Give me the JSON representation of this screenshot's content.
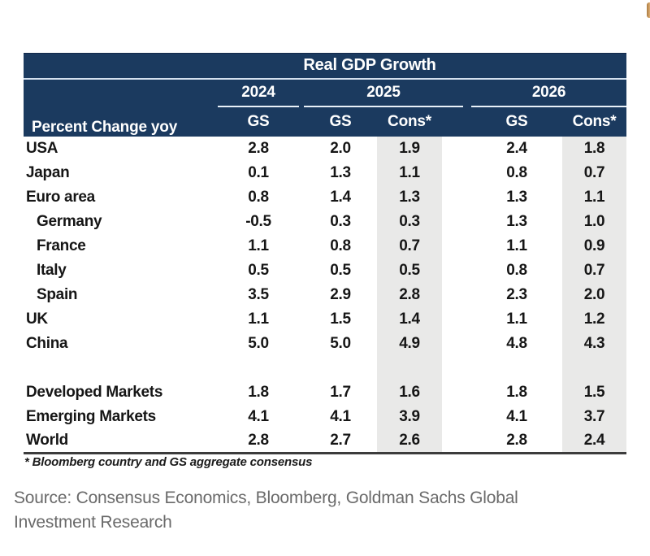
{
  "chart_data": {
    "type": "table",
    "title": "Real GDP Growth",
    "corner_label": "Percent Change yoy",
    "year_groups": [
      {
        "year": "2024",
        "subs": [
          "GS"
        ]
      },
      {
        "year": "2025",
        "subs": [
          "GS",
          "Cons*"
        ]
      },
      {
        "year": "2026",
        "subs": [
          "GS",
          "Cons*"
        ]
      }
    ],
    "columns": [
      "2024 GS",
      "2025 GS",
      "2025 Cons*",
      "2026 GS",
      "2026 Cons*"
    ],
    "rows": [
      {
        "label": "USA",
        "indent": false,
        "blank": false,
        "values": [
          "2.8",
          "2.0",
          "1.9",
          "2.4",
          "1.8"
        ]
      },
      {
        "label": "Japan",
        "indent": false,
        "blank": false,
        "values": [
          "0.1",
          "1.3",
          "1.1",
          "0.8",
          "0.7"
        ]
      },
      {
        "label": "Euro area",
        "indent": false,
        "blank": false,
        "values": [
          "0.8",
          "1.4",
          "1.3",
          "1.3",
          "1.1"
        ]
      },
      {
        "label": "Germany",
        "indent": true,
        "blank": false,
        "values": [
          "-0.5",
          "0.3",
          "0.3",
          "1.3",
          "1.0"
        ]
      },
      {
        "label": "France",
        "indent": true,
        "blank": false,
        "values": [
          "1.1",
          "0.8",
          "0.7",
          "1.1",
          "0.9"
        ]
      },
      {
        "label": "Italy",
        "indent": true,
        "blank": false,
        "values": [
          "0.5",
          "0.5",
          "0.5",
          "0.8",
          "0.7"
        ]
      },
      {
        "label": "Spain",
        "indent": true,
        "blank": false,
        "values": [
          "3.5",
          "2.9",
          "2.8",
          "2.3",
          "2.0"
        ]
      },
      {
        "label": "UK",
        "indent": false,
        "blank": false,
        "values": [
          "1.1",
          "1.5",
          "1.4",
          "1.1",
          "1.2"
        ]
      },
      {
        "label": "China",
        "indent": false,
        "blank": false,
        "values": [
          "5.0",
          "5.0",
          "4.9",
          "4.8",
          "4.3"
        ]
      },
      {
        "label": "",
        "indent": false,
        "blank": true,
        "values": [
          "",
          "",
          "",
          "",
          ""
        ]
      },
      {
        "label": "Developed Markets",
        "indent": false,
        "blank": false,
        "values": [
          "1.8",
          "1.7",
          "1.6",
          "1.8",
          "1.5"
        ]
      },
      {
        "label": "Emerging Markets",
        "indent": false,
        "blank": false,
        "values": [
          "4.1",
          "4.1",
          "3.9",
          "4.1",
          "3.7"
        ]
      },
      {
        "label": "World",
        "indent": false,
        "blank": false,
        "values": [
          "2.8",
          "2.7",
          "2.6",
          "2.8",
          "2.4"
        ]
      }
    ],
    "footnote": "* Bloomberg country and GS aggregate consensus"
  },
  "source_note": {
    "line1": "Source: Consensus Economics, Bloomberg, Goldman Sachs Global",
    "line2": "Investment Research"
  },
  "colors": {
    "header_navy": "#1b3a5f",
    "header_text": "#ffffff",
    "cons_column_shade": "#e9e9e8",
    "header_separator": "#d4e0ee",
    "body_text": "#161616",
    "bottom_border": "#3c3c3c",
    "source_text": "#6a6a6a"
  }
}
